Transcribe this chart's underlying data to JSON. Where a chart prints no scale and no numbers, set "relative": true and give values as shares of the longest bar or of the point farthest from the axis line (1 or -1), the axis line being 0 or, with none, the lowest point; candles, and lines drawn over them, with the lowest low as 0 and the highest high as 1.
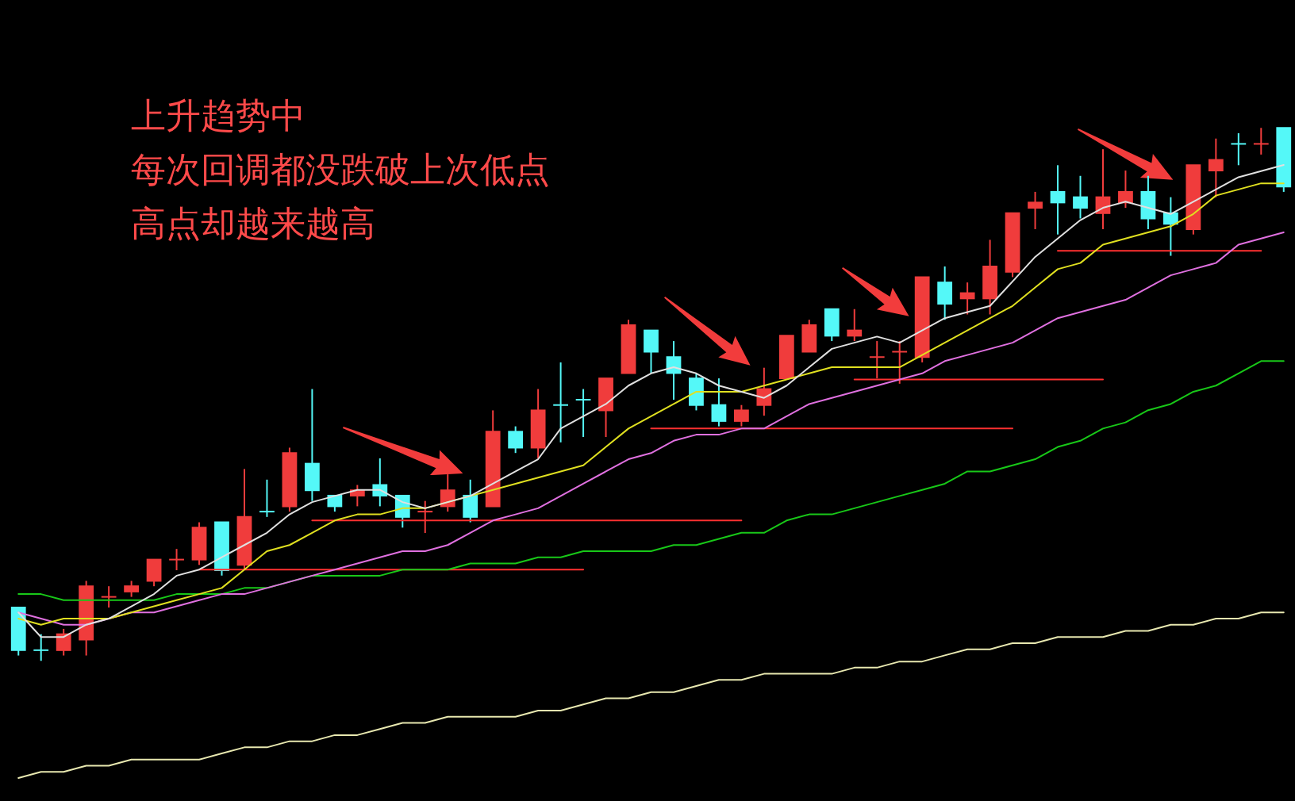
{
  "chart_data": [
    {
      "type": "candlestick",
      "relative": true,
      "annotations": [
        "上升趋势中",
        "每次回调都没跌破上次低点",
        "高点却越来越高"
      ],
      "categories": [
        null,
        null,
        null,
        null,
        null,
        null,
        null,
        null,
        null,
        null,
        null,
        null,
        null,
        null,
        null,
        null,
        null,
        null,
        null,
        null,
        null,
        null,
        null,
        null,
        null,
        null,
        null,
        null,
        null,
        null,
        null,
        null,
        null,
        null,
        null,
        null,
        null,
        null,
        null,
        null,
        null,
        null,
        null,
        null,
        null,
        null,
        null,
        null,
        null,
        null,
        null,
        null,
        null,
        null,
        null,
        null,
        null
      ],
      "ohlc": [
        [
          0.1,
          0.1,
          0.01,
          0.02
        ],
        [
          0.02,
          0.05,
          0,
          0.02
        ],
        [
          0.02,
          0.06,
          0.01,
          0.05
        ],
        [
          0.04,
          0.15,
          0.01,
          0.14
        ],
        [
          0.12,
          0.14,
          0.1,
          0.12
        ],
        [
          0.13,
          0.15,
          0.12,
          0.14
        ],
        [
          0.15,
          0.19,
          0.14,
          0.19
        ],
        [
          0.19,
          0.21,
          0.17,
          0.19
        ],
        [
          0.19,
          0.26,
          0.18,
          0.25
        ],
        [
          0.26,
          0.26,
          0.16,
          0.17
        ],
        [
          0.18,
          0.36,
          0.17,
          0.27
        ],
        [
          0.28,
          0.34,
          0.27,
          0.28
        ],
        [
          0.29,
          0.4,
          0.28,
          0.39
        ],
        [
          0.37,
          0.51,
          0.3,
          0.32
        ],
        [
          0.31,
          0.31,
          0.28,
          0.29
        ],
        [
          0.31,
          0.33,
          0.29,
          0.32
        ],
        [
          0.33,
          0.38,
          0.29,
          0.31
        ],
        [
          0.31,
          0.31,
          0.25,
          0.27
        ],
        [
          0.28,
          0.3,
          0.24,
          0.28
        ],
        [
          0.29,
          0.35,
          0.28,
          0.32
        ],
        [
          0.31,
          0.34,
          0.26,
          0.27
        ],
        [
          0.29,
          0.47,
          0.29,
          0.43
        ],
        [
          0.43,
          0.44,
          0.39,
          0.4
        ],
        [
          0.4,
          0.51,
          0.38,
          0.47
        ],
        [
          0.48,
          0.56,
          0.41,
          0.48
        ],
        [
          0.49,
          0.51,
          0.42,
          0.49
        ],
        [
          0.47,
          0.53,
          0.42,
          0.53
        ],
        [
          0.54,
          0.64,
          0.54,
          0.63
        ],
        [
          0.62,
          0.62,
          0.54,
          0.58
        ],
        [
          0.57,
          0.6,
          0.49,
          0.54
        ],
        [
          0.53,
          0.54,
          0.47,
          0.48
        ],
        [
          0.48,
          0.53,
          0.44,
          0.45
        ],
        [
          0.45,
          0.48,
          0.44,
          0.47
        ],
        [
          0.48,
          0.55,
          0.46,
          0.51
        ],
        [
          0.53,
          0.61,
          0.53,
          0.61
        ],
        [
          0.58,
          0.64,
          0.58,
          0.63
        ],
        [
          0.66,
          0.66,
          0.6,
          0.61
        ],
        [
          0.61,
          0.66,
          0.6,
          0.62
        ],
        [
          0.57,
          0.6,
          0.53,
          0.57
        ],
        [
          0.58,
          0.6,
          0.52,
          0.58
        ],
        [
          0.57,
          0.72,
          0.56,
          0.72
        ],
        [
          0.71,
          0.74,
          0.64,
          0.67
        ],
        [
          0.68,
          0.71,
          0.65,
          0.69
        ],
        [
          0.68,
          0.79,
          0.65,
          0.74
        ],
        [
          0.73,
          0.84,
          0.72,
          0.84
        ],
        [
          0.85,
          0.88,
          0.81,
          0.86
        ],
        [
          0.88,
          0.93,
          0.8,
          0.86
        ],
        [
          0.87,
          0.91,
          0.83,
          0.85
        ],
        [
          0.84,
          0.96,
          0.81,
          0.87
        ],
        [
          0.86,
          0.92,
          0.85,
          0.88
        ],
        [
          0.88,
          0.91,
          0.81,
          0.83
        ],
        [
          0.84,
          0.87,
          0.76,
          0.82
        ],
        [
          0.81,
          0.93,
          0.8,
          0.93
        ],
        [
          0.92,
          0.98,
          0.87,
          0.94
        ],
        [
          0.97,
          0.99,
          0.93,
          0.97
        ],
        [
          0.97,
          1,
          0.95,
          0.97
        ],
        [
          1,
          1,
          0.88,
          0.89
        ]
      ],
      "colors": [
        "#54f8f8",
        "#54f8f8",
        "#f03c3c",
        "#f03c3c",
        "#f03c3c",
        "#f03c3c",
        "#f03c3c",
        "#f03c3c",
        "#f03c3c",
        "#54f8f8",
        "#f03c3c",
        "#54f8f8",
        "#f03c3c",
        "#54f8f8",
        "#54f8f8",
        "#f03c3c",
        "#54f8f8",
        "#54f8f8",
        "#f03c3c",
        "#f03c3c",
        "#54f8f8",
        "#f03c3c",
        "#54f8f8",
        "#f03c3c",
        "#54f8f8",
        "#54f8f8",
        "#f03c3c",
        "#f03c3c",
        "#54f8f8",
        "#54f8f8",
        "#54f8f8",
        "#54f8f8",
        "#f03c3c",
        "#f03c3c",
        "#f03c3c",
        "#f03c3c",
        "#54f8f8",
        "#f03c3c",
        "#f03c3c",
        "#f03c3c",
        "#f03c3c",
        "#54f8f8",
        "#f03c3c",
        "#f03c3c",
        "#f03c3c",
        "#f03c3c",
        "#54f8f8",
        "#54f8f8",
        "#f03c3c",
        "#f03c3c",
        "#54f8f8",
        "#54f8f8",
        "#f03c3c",
        "#f03c3c",
        "#54f8f8",
        "#f03c3c",
        "#54f8f8"
      ],
      "legend": false,
      "tick_labels": false
    },
    {
      "type": "line",
      "relative": true,
      "categories": [
        null,
        null,
        null,
        null,
        null,
        null,
        null,
        null,
        null,
        null,
        null,
        null,
        null,
        null,
        null,
        null,
        null,
        null,
        null,
        null,
        null,
        null,
        null,
        null,
        null,
        null,
        null,
        null,
        null,
        null,
        null,
        null,
        null,
        null,
        null,
        null,
        null,
        null,
        null,
        null,
        null,
        null,
        null,
        null,
        null,
        null,
        null,
        null,
        null,
        null,
        null,
        null,
        null,
        null,
        null,
        null,
        null
      ],
      "series": [
        {
          "color": "#e0e0e0",
          "values": [
            0.27,
            0.23,
            0.23,
            0.25,
            0.26,
            0.28,
            0.3,
            0.33,
            0.34,
            0.36,
            0.38,
            0.4,
            0.43,
            0.45,
            0.46,
            0.47,
            0.47,
            0.45,
            0.44,
            0.45,
            0.46,
            0.48,
            0.5,
            0.52,
            0.57,
            0.59,
            0.61,
            0.64,
            0.66,
            0.67,
            0.66,
            0.64,
            0.63,
            0.62,
            0.64,
            0.67,
            0.7,
            0.71,
            0.72,
            0.71,
            0.73,
            0.75,
            0.76,
            0.77,
            0.81,
            0.85,
            0.88,
            0.91,
            0.93,
            0.94,
            0.93,
            0.92,
            0.94,
            0.96,
            0.98,
            0.99,
            1
          ]
        },
        {
          "color": "#e0e020",
          "values": [
            0.26,
            0.25,
            0.26,
            0.26,
            0.26,
            0.27,
            0.28,
            0.29,
            0.3,
            0.31,
            0.34,
            0.37,
            0.38,
            0.4,
            0.42,
            0.43,
            0.43,
            0.44,
            0.44,
            0.45,
            0.46,
            0.47,
            0.48,
            0.49,
            0.5,
            0.51,
            0.54,
            0.57,
            0.59,
            0.61,
            0.63,
            0.63,
            0.63,
            0.64,
            0.65,
            0.66,
            0.67,
            0.67,
            0.67,
            0.67,
            0.69,
            0.71,
            0.73,
            0.75,
            0.77,
            0.8,
            0.83,
            0.84,
            0.87,
            0.88,
            0.89,
            0.9,
            0.92,
            0.95,
            0.96,
            0.97,
            0.97
          ]
        },
        {
          "color": "#e070e0",
          "values": [
            0.27,
            0.26,
            0.25,
            0.25,
            0.26,
            0.27,
            0.27,
            0.28,
            0.29,
            0.3,
            0.3,
            0.31,
            0.32,
            0.33,
            0.34,
            0.35,
            0.36,
            0.37,
            0.37,
            0.38,
            0.4,
            0.42,
            0.43,
            0.44,
            0.46,
            0.48,
            0.5,
            0.52,
            0.53,
            0.55,
            0.56,
            0.56,
            0.57,
            0.57,
            0.59,
            0.61,
            0.62,
            0.63,
            0.64,
            0.65,
            0.66,
            0.68,
            0.69,
            0.7,
            0.71,
            0.73,
            0.75,
            0.76,
            0.77,
            0.78,
            0.8,
            0.82,
            0.83,
            0.84,
            0.87,
            0.88,
            0.89
          ]
        },
        {
          "color": "#18c818",
          "values": [
            0.3,
            0.3,
            0.29,
            0.29,
            0.29,
            0.29,
            0.29,
            0.3,
            0.3,
            0.3,
            0.31,
            0.31,
            0.32,
            0.33,
            0.33,
            0.33,
            0.33,
            0.34,
            0.34,
            0.34,
            0.35,
            0.35,
            0.35,
            0.36,
            0.36,
            0.37,
            0.37,
            0.37,
            0.37,
            0.38,
            0.38,
            0.39,
            0.4,
            0.4,
            0.42,
            0.43,
            0.43,
            0.44,
            0.45,
            0.46,
            0.47,
            0.48,
            0.5,
            0.5,
            0.51,
            0.52,
            0.54,
            0.55,
            0.57,
            0.58,
            0.6,
            0.61,
            0.63,
            0.64,
            0.66,
            0.68,
            0.68
          ]
        },
        {
          "color": "#e8e8b0",
          "values": [
            0,
            0.01,
            0.01,
            0.02,
            0.02,
            0.03,
            0.03,
            0.03,
            0.03,
            0.04,
            0.05,
            0.05,
            0.06,
            0.06,
            0.07,
            0.07,
            0.08,
            0.09,
            0.09,
            0.1,
            0.1,
            0.1,
            0.1,
            0.11,
            0.11,
            0.12,
            0.13,
            0.13,
            0.14,
            0.14,
            0.15,
            0.16,
            0.16,
            0.17,
            0.17,
            0.17,
            0.17,
            0.18,
            0.18,
            0.19,
            0.19,
            0.2,
            0.21,
            0.21,
            0.22,
            0.22,
            0.23,
            0.23,
            0.23,
            0.24,
            0.24,
            0.25,
            0.25,
            0.26,
            0.26,
            0.27,
            0.27
          ]
        },
        {
          "color": "#ff3030",
          "values": [
            null,
            null,
            null,
            null,
            null,
            null,
            null,
            null,
            0.34,
            0.34,
            0.34,
            0.34,
            0.34,
            0.34,
            0.34,
            0.34,
            0.34,
            0.34,
            0.34,
            0.34,
            0.34,
            0.34,
            0.34,
            0.34,
            0.34,
            0.34,
            null,
            null,
            null,
            null,
            null,
            null,
            null,
            null,
            null,
            null,
            null,
            null,
            null,
            null,
            null,
            null,
            null,
            null,
            null,
            null,
            null,
            null,
            null,
            null,
            null,
            null,
            null,
            null,
            null,
            null,
            null
          ]
        },
        {
          "color": "#ff3030",
          "values": [
            null,
            null,
            null,
            null,
            null,
            null,
            null,
            null,
            null,
            null,
            null,
            null,
            null,
            0.42,
            0.42,
            0.42,
            0.42,
            0.42,
            0.42,
            0.42,
            0.42,
            0.42,
            0.42,
            0.42,
            0.42,
            0.42,
            0.42,
            0.42,
            0.42,
            0.42,
            0.42,
            0.42,
            0.42,
            null,
            null,
            null,
            null,
            null,
            null,
            null,
            null,
            null,
            null,
            null,
            null,
            null,
            null,
            null,
            null,
            null,
            null,
            null,
            null,
            null,
            null,
            null,
            null
          ]
        },
        {
          "color": "#ff3030",
          "values": [
            null,
            null,
            null,
            null,
            null,
            null,
            null,
            null,
            null,
            null,
            null,
            null,
            null,
            null,
            null,
            null,
            null,
            null,
            null,
            null,
            null,
            null,
            null,
            null,
            null,
            null,
            null,
            null,
            0.57,
            0.57,
            0.57,
            0.57,
            0.57,
            0.57,
            0.57,
            0.57,
            0.57,
            0.57,
            0.57,
            0.57,
            0.57,
            0.57,
            0.57,
            0.57,
            0.57,
            null,
            null,
            null,
            null,
            null,
            null,
            null,
            null,
            null,
            null,
            null,
            null
          ]
        },
        {
          "color": "#ff3030",
          "values": [
            null,
            null,
            null,
            null,
            null,
            null,
            null,
            null,
            null,
            null,
            null,
            null,
            null,
            null,
            null,
            null,
            null,
            null,
            null,
            null,
            null,
            null,
            null,
            null,
            null,
            null,
            null,
            null,
            null,
            null,
            null,
            null,
            null,
            null,
            null,
            null,
            null,
            0.65,
            0.65,
            0.65,
            0.65,
            0.65,
            0.65,
            0.65,
            0.65,
            0.65,
            0.65,
            0.65,
            0.65,
            null,
            null,
            null,
            null,
            null,
            null,
            null,
            null
          ]
        },
        {
          "color": "#ff3030",
          "values": [
            null,
            null,
            null,
            null,
            null,
            null,
            null,
            null,
            null,
            null,
            null,
            null,
            null,
            null,
            null,
            null,
            null,
            null,
            null,
            null,
            null,
            null,
            null,
            null,
            null,
            null,
            null,
            null,
            null,
            null,
            null,
            null,
            null,
            null,
            null,
            null,
            null,
            null,
            null,
            null,
            null,
            null,
            null,
            null,
            null,
            null,
            0.86,
            0.86,
            0.86,
            0.86,
            0.86,
            0.86,
            0.86,
            0.86,
            0.86,
            0.86,
            null
          ]
        }
      ],
      "legend": false,
      "tick_labels": false,
      "marker": "none",
      "line_style": "solid"
    }
  ]
}
